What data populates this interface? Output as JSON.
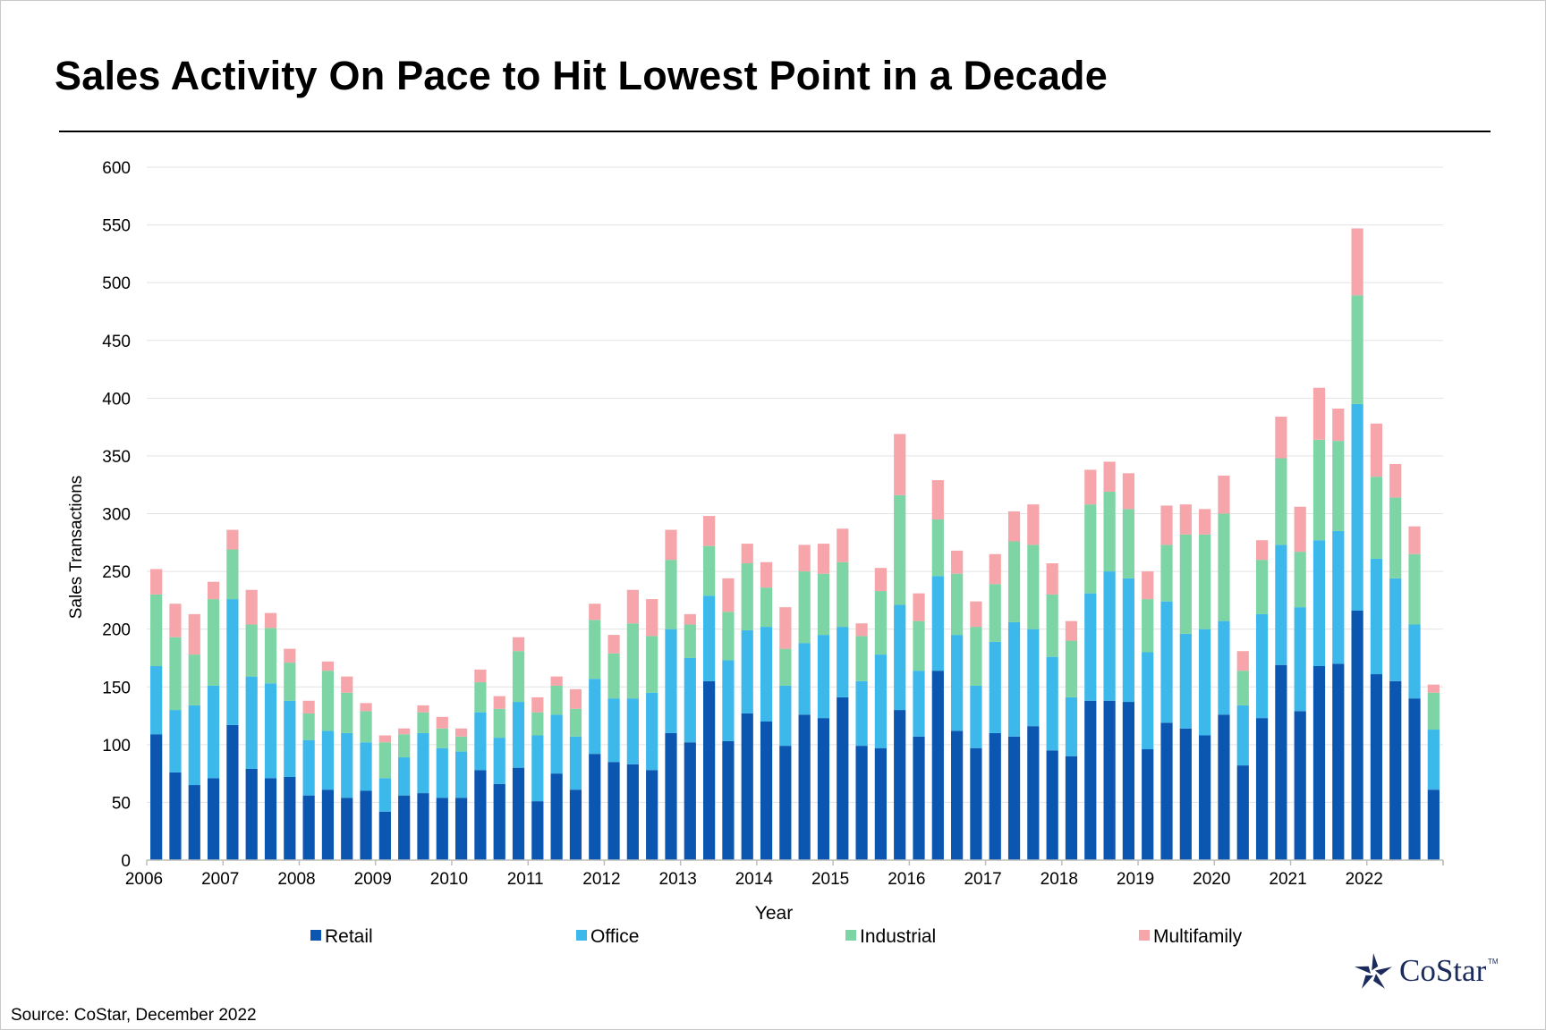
{
  "title": "Sales Activity On Pace to Hit Lowest Point in a Decade",
  "source": "Source: CoStar, December 2022",
  "logo": {
    "name": "costar-logo",
    "text": "CoStar",
    "tm": "TM"
  },
  "colors": {
    "Retail": "#0b56b0",
    "Office": "#3db8ea",
    "Industrial": "#7dd4a4",
    "Multifamily": "#f6a6aa",
    "grid": "#e3e3e3",
    "axis": "#bdbdbd",
    "logo": "#1a2b5c"
  },
  "chart_data": {
    "type": "bar",
    "stacked": true,
    "xlabel": "Year",
    "ylabel": "Sales Transactions",
    "ylim": [
      0,
      600
    ],
    "yticks": [
      0,
      50,
      100,
      150,
      200,
      250,
      300,
      350,
      400,
      450,
      500,
      550,
      600
    ],
    "year_labels": [
      "2006",
      "2007",
      "2008",
      "2009",
      "2010",
      "2011",
      "2012",
      "2013",
      "2014",
      "2015",
      "2016",
      "2017",
      "2018",
      "2019",
      "2020",
      "2021",
      "2022"
    ],
    "grid": true,
    "legend_position": "bottom",
    "categories": [
      "2006 Q1",
      "2006 Q2",
      "2006 Q3",
      "2006 Q4",
      "2007 Q1",
      "2007 Q2",
      "2007 Q3",
      "2007 Q4",
      "2008 Q1",
      "2008 Q2",
      "2008 Q3",
      "2008 Q4",
      "2009 Q1",
      "2009 Q2",
      "2009 Q3",
      "2009 Q4",
      "2010 Q1",
      "2010 Q2",
      "2010 Q3",
      "2010 Q4",
      "2011 Q1",
      "2011 Q2",
      "2011 Q3",
      "2011 Q4",
      "2012 Q1",
      "2012 Q2",
      "2012 Q3",
      "2012 Q4",
      "2013 Q1",
      "2013 Q2",
      "2013 Q3",
      "2013 Q4",
      "2014 Q1",
      "2014 Q2",
      "2014 Q3",
      "2014 Q4",
      "2015 Q1",
      "2015 Q2",
      "2015 Q3",
      "2015 Q4",
      "2016 Q1",
      "2016 Q2",
      "2016 Q3",
      "2016 Q4",
      "2017 Q1",
      "2017 Q2",
      "2017 Q3",
      "2017 Q4",
      "2018 Q1",
      "2018 Q2",
      "2018 Q3",
      "2018 Q4",
      "2019 Q1",
      "2019 Q2",
      "2019 Q3",
      "2019 Q4",
      "2020 Q1",
      "2020 Q2",
      "2020 Q3",
      "2020 Q4",
      "2021 Q1",
      "2021 Q2",
      "2021 Q3",
      "2021 Q4",
      "2022 Q1",
      "2022 Q2",
      "2022 Q3",
      "2022 Q4"
    ],
    "series": [
      {
        "name": "Retail",
        "values": [
          109,
          76,
          65,
          71,
          117,
          79,
          71,
          72,
          56,
          61,
          54,
          60,
          42,
          56,
          58,
          54,
          54,
          78,
          66,
          80,
          51,
          75,
          61,
          92,
          85,
          83,
          78,
          110,
          102,
          155,
          103,
          127,
          120,
          99,
          126,
          123,
          141,
          99,
          97,
          130,
          107,
          164,
          112,
          97,
          110,
          107,
          116,
          95,
          90,
          138,
          138,
          137,
          96,
          119,
          114,
          108,
          126,
          82,
          123,
          169,
          129,
          168,
          170,
          216,
          161,
          155,
          140,
          61
        ]
      },
      {
        "name": "Office",
        "values": [
          59,
          54,
          69,
          80,
          109,
          80,
          82,
          66,
          48,
          51,
          56,
          42,
          29,
          33,
          52,
          43,
          40,
          50,
          40,
          57,
          57,
          51,
          46,
          65,
          55,
          57,
          67,
          90,
          73,
          74,
          70,
          72,
          82,
          52,
          62,
          72,
          61,
          56,
          81,
          91,
          57,
          82,
          83,
          54,
          79,
          99,
          84,
          81,
          51,
          93,
          112,
          107,
          84,
          105,
          82,
          92,
          81,
          52,
          90,
          104,
          90,
          109,
          115,
          179,
          100,
          89,
          64,
          52
        ]
      },
      {
        "name": "Industrial",
        "values": [
          62,
          63,
          44,
          75,
          43,
          45,
          48,
          33,
          23,
          52,
          35,
          27,
          31,
          20,
          18,
          17,
          13,
          26,
          25,
          44,
          20,
          25,
          24,
          51,
          39,
          65,
          49,
          60,
          29,
          43,
          42,
          58,
          34,
          32,
          62,
          53,
          56,
          39,
          55,
          95,
          43,
          49,
          53,
          51,
          50,
          70,
          73,
          54,
          49,
          77,
          69,
          60,
          46,
          49,
          86,
          82,
          93,
          30,
          47,
          75,
          48,
          87,
          78,
          94,
          71,
          70,
          61,
          32
        ]
      },
      {
        "name": "Multifamily",
        "values": [
          22,
          29,
          35,
          15,
          17,
          30,
          13,
          12,
          11,
          8,
          14,
          7,
          6,
          5,
          6,
          10,
          7,
          11,
          11,
          12,
          13,
          8,
          17,
          14,
          16,
          29,
          32,
          26,
          9,
          26,
          29,
          17,
          22,
          36,
          23,
          26,
          29,
          11,
          20,
          53,
          24,
          34,
          20,
          22,
          26,
          26,
          35,
          27,
          17,
          30,
          26,
          31,
          24,
          34,
          26,
          22,
          33,
          17,
          17,
          36,
          39,
          45,
          28,
          58,
          46,
          29,
          24,
          7
        ]
      }
    ]
  }
}
